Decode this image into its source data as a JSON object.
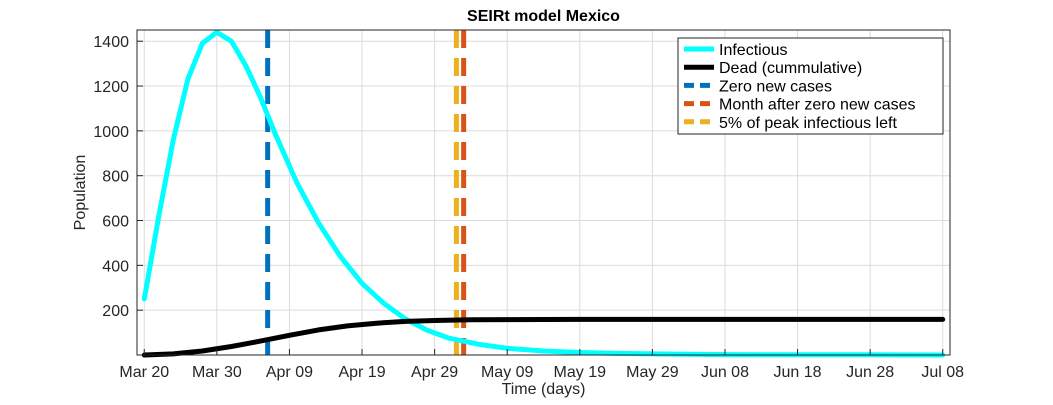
{
  "chart_data": {
    "type": "line",
    "title": "SEIRt model Mexico",
    "xlabel": "Time (days)",
    "ylabel": "Population",
    "x_tick_labels": [
      "Mar 20",
      "Mar 30",
      "Apr 09",
      "Apr 19",
      "Apr 29",
      "May 09",
      "May 19",
      "May 29",
      "Jun 08",
      "Jun 18",
      "Jun 28",
      "Jul 08"
    ],
    "x_ticks": [
      "2020-03-20",
      "2020-03-30",
      "2020-04-09",
      "2020-04-19",
      "2020-04-29",
      "2020-05-09",
      "2020-05-19",
      "2020-05-29",
      "2020-06-08",
      "2020-06-18",
      "2020-06-28",
      "2020-07-08"
    ],
    "xlim": [
      "2020-03-19",
      "2020-07-09"
    ],
    "ylim": [
      0,
      1450
    ],
    "y_ticks": [
      200,
      400,
      600,
      800,
      1000,
      1200,
      1400
    ],
    "grid": true,
    "legend_position": "top-right",
    "series": [
      {
        "name": "Infectious",
        "color": "#00ffff",
        "x": [
          "2020-03-20",
          "2020-03-22",
          "2020-03-24",
          "2020-03-26",
          "2020-03-28",
          "2020-03-30",
          "2020-04-01",
          "2020-04-03",
          "2020-04-05",
          "2020-04-07",
          "2020-04-10",
          "2020-04-13",
          "2020-04-16",
          "2020-04-19",
          "2020-04-22",
          "2020-04-25",
          "2020-04-28",
          "2020-05-01",
          "2020-05-05",
          "2020-05-09",
          "2020-05-14",
          "2020-05-19",
          "2020-05-24",
          "2020-05-29",
          "2020-06-08",
          "2020-06-18",
          "2020-06-28",
          "2020-07-08"
        ],
        "values": [
          250,
          620,
          960,
          1230,
          1390,
          1440,
          1400,
          1290,
          1150,
          990,
          770,
          590,
          440,
          320,
          230,
          160,
          110,
          75,
          48,
          30,
          18,
          11,
          7,
          5,
          2,
          1,
          1,
          0
        ]
      },
      {
        "name": "Dead (cummulative)",
        "color": "#000000",
        "x": [
          "2020-03-20",
          "2020-03-24",
          "2020-03-28",
          "2020-04-01",
          "2020-04-05",
          "2020-04-09",
          "2020-04-13",
          "2020-04-17",
          "2020-04-21",
          "2020-04-25",
          "2020-04-29",
          "2020-05-04",
          "2020-05-09",
          "2020-05-19",
          "2020-05-29",
          "2020-06-08",
          "2020-06-18",
          "2020-06-28",
          "2020-07-08"
        ],
        "values": [
          0,
          5,
          18,
          38,
          62,
          88,
          112,
          130,
          142,
          150,
          154,
          157,
          158,
          159,
          159,
          159,
          159,
          159,
          159
        ]
      }
    ],
    "vertical_lines": [
      {
        "name": "Zero new cases",
        "color": "#0072bd",
        "x": "2020-04-06"
      },
      {
        "name": "Month after zero new cases",
        "color": "#d95319",
        "x": "2020-05-03"
      },
      {
        "name": "5% of peak infectious left",
        "color": "#edb120",
        "x": "2020-05-02"
      }
    ]
  }
}
